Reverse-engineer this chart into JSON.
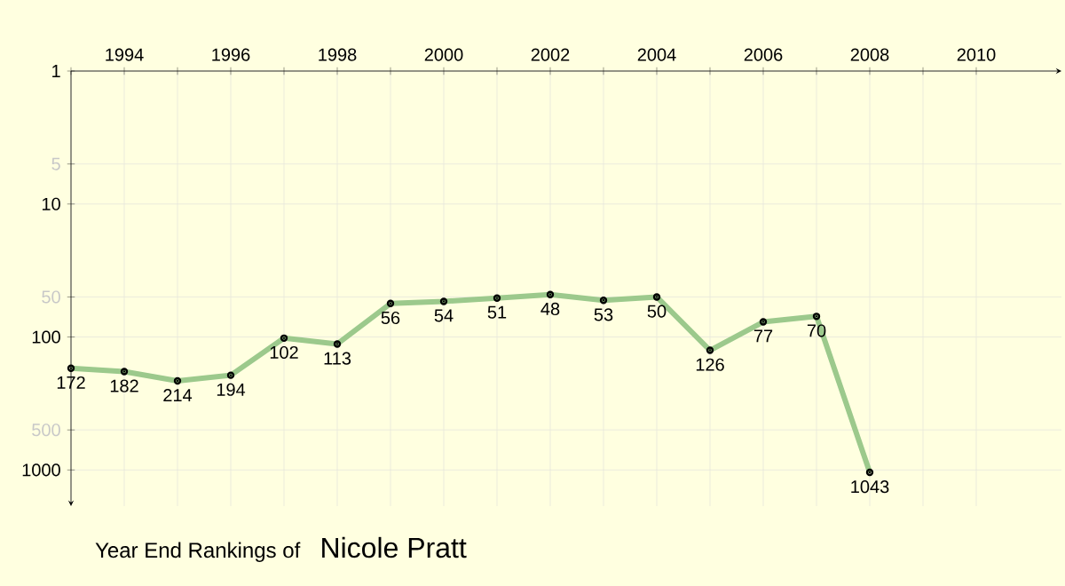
{
  "chart_data": {
    "type": "line",
    "title": "Year End Rankings of",
    "subtitle": "Nicole Pratt",
    "x": [
      1993,
      1994,
      1995,
      1996,
      1997,
      1998,
      1999,
      2000,
      2001,
      2002,
      2003,
      2004,
      2005,
      2006,
      2007,
      2008
    ],
    "values": [
      172,
      182,
      214,
      194,
      102,
      113,
      56,
      54,
      51,
      48,
      53,
      50,
      126,
      77,
      70,
      1043
    ],
    "color": "#9cc98c",
    "data_labels": true,
    "marker": "circle",
    "line_style": "solid",
    "log": "y",
    "grid": true,
    "xlim": [
      1993,
      2011.6
    ],
    "xticks": [
      {
        "value": 1993,
        "label": null
      },
      1994,
      {
        "value": 1995,
        "label": null
      },
      1996,
      {
        "value": 1997,
        "label": null
      },
      1998,
      {
        "value": 1999,
        "label": null
      },
      2000,
      {
        "value": 2001,
        "label": null
      },
      2002,
      {
        "value": 2003,
        "label": null
      },
      2004,
      {
        "value": 2005,
        "label": null
      },
      2006,
      {
        "value": 2007,
        "label": null
      },
      2008,
      {
        "value": 2009,
        "label": null
      },
      2010
    ],
    "ylim": [
      1870,
      1
    ],
    "yticks": [
      1,
      5,
      10,
      50,
      100,
      500,
      1000
    ]
  }
}
